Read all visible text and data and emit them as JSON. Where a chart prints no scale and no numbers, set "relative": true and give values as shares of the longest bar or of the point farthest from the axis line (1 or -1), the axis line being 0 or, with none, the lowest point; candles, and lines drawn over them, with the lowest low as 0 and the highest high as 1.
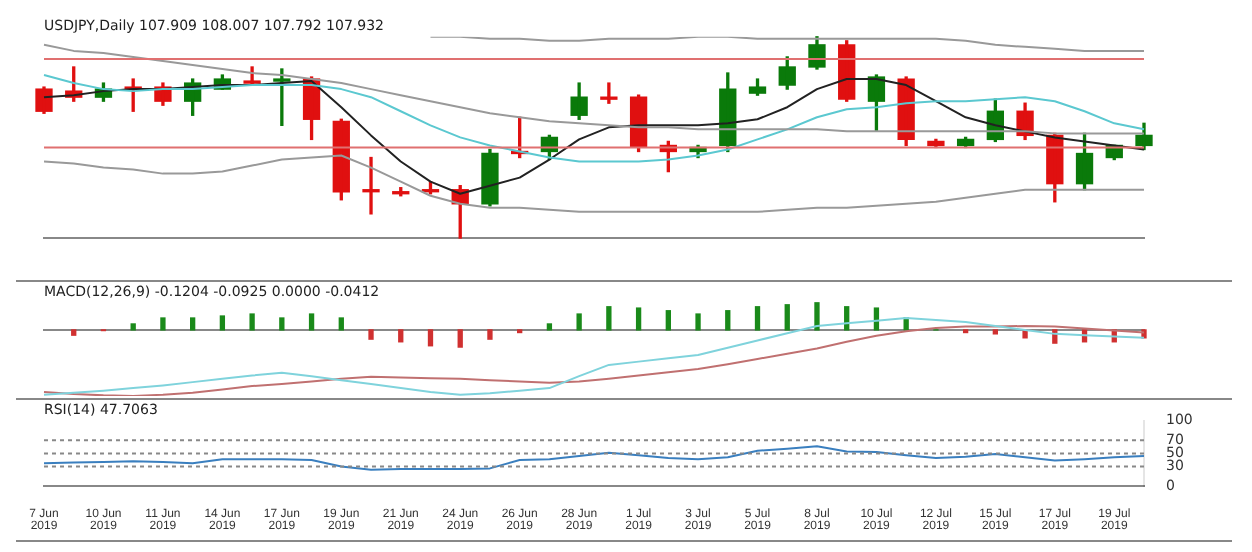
{
  "chart_data": [
    {
      "type": "candlestick",
      "title": "USDJPY,Daily 107.909 108.007 107.792 107.932",
      "relative": true,
      "grid": false,
      "legend": false,
      "marker": "none",
      "categories": [
        null,
        null,
        null,
        null,
        null,
        null,
        null,
        null,
        null,
        null,
        null,
        null,
        null,
        null,
        null,
        null,
        null,
        null,
        null,
        null,
        null,
        null,
        null,
        null,
        null,
        null,
        null,
        null,
        null,
        null,
        null,
        null,
        null,
        null,
        null,
        null,
        null,
        null
      ],
      "ohlc": [
        [
          0.74,
          0.75,
          0.62,
          0.63
        ],
        [
          0.73,
          0.85,
          0.68,
          0.7
        ],
        [
          0.7,
          0.77,
          0.68,
          0.74
        ],
        [
          0.75,
          0.79,
          0.63,
          0.74
        ],
        [
          0.75,
          0.77,
          0.66,
          0.68
        ],
        [
          0.68,
          0.79,
          0.61,
          0.77
        ],
        [
          0.74,
          0.81,
          0.74,
          0.79
        ],
        [
          0.78,
          0.85,
          0.76,
          0.77
        ],
        [
          0.78,
          0.84,
          0.56,
          0.79
        ],
        [
          0.79,
          0.8,
          0.49,
          0.59
        ],
        [
          0.58,
          0.59,
          0.19,
          0.23
        ],
        [
          0.24,
          0.4,
          0.12,
          0.23
        ],
        [
          0.23,
          0.25,
          0.21,
          0.22
        ],
        [
          0.24,
          0.28,
          0.22,
          0.23
        ],
        [
          0.24,
          0.26,
          0,
          0.17
        ],
        [
          0.17,
          0.44,
          0.16,
          0.42
        ],
        [
          0.43,
          0.6,
          0.4,
          0.42
        ],
        [
          0.43,
          0.51,
          0.39,
          0.5
        ],
        [
          0.61,
          0.77,
          0.59,
          0.7
        ],
        [
          0.7,
          0.77,
          0.67,
          0.69
        ],
        [
          0.7,
          0.71,
          0.43,
          0.45
        ],
        [
          0.46,
          0.48,
          0.33,
          0.43
        ],
        [
          0.43,
          0.46,
          0.4,
          0.45
        ],
        [
          0.46,
          0.82,
          0.43,
          0.74
        ],
        [
          0.72,
          0.79,
          0.71,
          0.75
        ],
        [
          0.76,
          0.9,
          0.74,
          0.85
        ],
        [
          0.85,
          1,
          0.84,
          0.96
        ],
        [
          0.96,
          0.98,
          0.68,
          0.69
        ],
        [
          0.68,
          0.81,
          0.53,
          0.8
        ],
        [
          0.79,
          0.8,
          0.46,
          0.49
        ],
        [
          0.48,
          0.49,
          0.45,
          0.46
        ],
        [
          0.46,
          0.5,
          0.45,
          0.49
        ],
        [
          0.49,
          0.69,
          0.48,
          0.63
        ],
        [
          0.63,
          0.67,
          0.49,
          0.51
        ],
        [
          0.51,
          0.52,
          0.18,
          0.27
        ],
        [
          0.27,
          0.52,
          0.24,
          0.42
        ],
        [
          0.4,
          0.46,
          0.39,
          0.46
        ],
        [
          0.46,
          0.57,
          0.44,
          0.51
        ]
      ],
      "colors": [
        "#e01010",
        "#e01010",
        "#0a7a0a",
        "#e01010",
        "#e01010",
        "#0a7a0a",
        "#0a7a0a",
        "#e01010",
        "#0a7a0a",
        "#e01010",
        "#e01010",
        "#e01010",
        "#e01010",
        "#e01010",
        "#e01010",
        "#0a7a0a",
        "#e01010",
        "#0a7a0a",
        "#0a7a0a",
        "#e01010",
        "#e01010",
        "#e01010",
        "#0a7a0a",
        "#0a7a0a",
        "#0a7a0a",
        "#0a7a0a",
        "#0a7a0a",
        "#e01010",
        "#0a7a0a",
        "#e01010",
        "#e01010",
        "#0a7a0a",
        "#0a7a0a",
        "#e01010",
        "#e01010",
        "#0a7a0a",
        "#0a7a0a",
        "#0a7a0a"
      ],
      "series": [
        {
          "type": "line",
          "color": "#999999",
          "values": [
            null,
            null,
            null,
            null,
            null,
            null,
            null,
            null,
            null,
            null,
            null,
            null,
            null,
            1,
            1,
            0.99,
            0.99,
            0.98,
            0.98,
            0.99,
            0.99,
            0.99,
            1,
            1,
            0.99,
            0.99,
            0.99,
            0.99,
            0.99,
            0.99,
            0.99,
            0.98,
            0.96,
            0.95,
            0.94,
            0.93,
            0.93,
            0.93
          ]
        },
        {
          "type": "line",
          "color": "#999999",
          "values": [
            0.96,
            0.93,
            0.92,
            0.9,
            0.88,
            0.86,
            0.84,
            0.82,
            0.81,
            0.79,
            0.77,
            0.74,
            0.71,
            0.68,
            0.65,
            0.62,
            0.6,
            0.58,
            0.57,
            0.56,
            0.55,
            0.55,
            0.54,
            0.54,
            0.54,
            0.54,
            0.54,
            0.53,
            0.53,
            0.53,
            0.53,
            0.53,
            0.53,
            0.53,
            0.52,
            0.52,
            0.52,
            0.52
          ]
        },
        {
          "type": "line",
          "color": "#999999",
          "values": [
            0.38,
            0.37,
            0.35,
            0.34,
            0.32,
            0.32,
            0.33,
            0.36,
            0.39,
            0.4,
            0.41,
            0.35,
            0.28,
            0.21,
            0.17,
            0.15,
            0.15,
            0.14,
            0.13,
            0.13,
            0.13,
            0.13,
            0.13,
            0.13,
            0.13,
            0.14,
            0.15,
            0.15,
            0.16,
            0.17,
            0.18,
            0.2,
            0.22,
            0.24,
            0.24,
            0.24,
            0.24,
            0.24
          ]
        },
        {
          "type": "line",
          "color": "#5bc8d0",
          "values": [
            0.81,
            0.77,
            0.74,
            0.73,
            0.74,
            0.74,
            0.75,
            0.76,
            0.76,
            0.76,
            0.74,
            0.7,
            0.63,
            0.56,
            0.5,
            0.46,
            0.43,
            0.4,
            0.38,
            0.38,
            0.38,
            0.39,
            0.41,
            0.44,
            0.49,
            0.54,
            0.6,
            0.64,
            0.65,
            0.67,
            0.68,
            0.68,
            0.69,
            0.7,
            0.68,
            0.63,
            0.57,
            0.54
          ]
        },
        {
          "type": "line",
          "color": "#222222",
          "values": [
            0.7,
            0.71,
            0.73,
            0.74,
            0.74,
            0.75,
            0.76,
            0.76,
            0.77,
            0.78,
            0.65,
            0.51,
            0.38,
            0.28,
            0.22,
            0.26,
            0.3,
            0.39,
            0.49,
            0.55,
            0.56,
            0.56,
            0.56,
            0.57,
            0.59,
            0.65,
            0.74,
            0.79,
            0.79,
            0.76,
            0.68,
            0.6,
            0.56,
            0.53,
            0.5,
            0.48,
            0.46,
            0.44
          ]
        }
      ],
      "ref_lines": [
        {
          "axis": "y",
          "value": 0.89,
          "color": "#e07070"
        },
        {
          "axis": "y",
          "value": 0.45,
          "color": "#e07070"
        }
      ]
    },
    {
      "type": "bar",
      "title": "MACD(12,26,9) -0.1204 -0.0925 0.0000 -0.0412",
      "relative": true,
      "grid": false,
      "legend": false,
      "marker": "none",
      "categories": [
        null,
        null,
        null,
        null,
        null,
        null,
        null,
        null,
        null,
        null,
        null,
        null,
        null,
        null,
        null,
        null,
        null,
        null,
        null,
        null,
        null,
        null,
        null,
        null,
        null,
        null,
        null,
        null,
        null,
        null,
        null,
        null,
        null,
        null,
        null,
        null,
        null,
        null
      ],
      "series": [
        {
          "type": "bar",
          "values": [
            null,
            -0.08,
            -0.01,
            0.09,
            0.18,
            0.18,
            0.21,
            0.24,
            0.18,
            0.24,
            0.18,
            -0.14,
            -0.18,
            -0.24,
            -0.26,
            -0.14,
            -0.04,
            0.09,
            0.24,
            0.35,
            0.33,
            0.29,
            0.24,
            0.29,
            0.35,
            0.38,
            0.41,
            0.35,
            0.33,
            0.18,
            0,
            -0.04,
            -0.06,
            -0.12,
            -0.2,
            -0.18,
            -0.18,
            -0.12
          ],
          "colors": [
            "#1a8a1a",
            "#d03030",
            "#d03030",
            "#1a8a1a",
            "#1a8a1a",
            "#1a8a1a",
            "#1a8a1a",
            "#1a8a1a",
            "#1a8a1a",
            "#1a8a1a",
            "#1a8a1a",
            "#d03030",
            "#d03030",
            "#d03030",
            "#d03030",
            "#d03030",
            "#d03030",
            "#1a8a1a",
            "#1a8a1a",
            "#1a8a1a",
            "#1a8a1a",
            "#1a8a1a",
            "#1a8a1a",
            "#1a8a1a",
            "#1a8a1a",
            "#1a8a1a",
            "#1a8a1a",
            "#1a8a1a",
            "#1a8a1a",
            "#1a8a1a",
            "#1a8a1a",
            "#d03030",
            "#d03030",
            "#d03030",
            "#d03030",
            "#d03030",
            "#d03030",
            "#d03030"
          ]
        },
        {
          "type": "line",
          "color": "#7fd3dc",
          "values": [
            -0.98,
            -0.95,
            -0.92,
            -0.88,
            -0.84,
            -0.79,
            -0.74,
            -0.69,
            -0.65,
            -0.7,
            -0.76,
            -0.82,
            -0.88,
            -0.94,
            -0.98,
            -0.96,
            -0.92,
            -0.88,
            -0.7,
            -0.53,
            -0.48,
            -0.43,
            -0.38,
            -0.27,
            -0.16,
            -0.05,
            0.06,
            0.1,
            0.14,
            0.18,
            0.15,
            0.12,
            0.06,
            0,
            -0.06,
            -0.08,
            -0.1,
            -0.12
          ]
        },
        {
          "type": "line",
          "color": "#c07070",
          "values": [
            -0.94,
            -0.97,
            -0.99,
            -1,
            -0.98,
            -0.95,
            -0.9,
            -0.85,
            -0.82,
            -0.78,
            -0.74,
            -0.71,
            -0.72,
            -0.73,
            -0.74,
            -0.76,
            -0.78,
            -0.8,
            -0.78,
            -0.74,
            -0.69,
            -0.64,
            -0.59,
            -0.52,
            -0.44,
            -0.36,
            -0.28,
            -0.18,
            -0.09,
            -0.02,
            0.03,
            0.05,
            0.05,
            0.06,
            0.05,
            0.02,
            -0.01,
            -0.04
          ]
        }
      ]
    },
    {
      "type": "line",
      "title": "RSI(14) 47.7063",
      "grid": false,
      "legend": false,
      "marker": "none",
      "categories": [
        "7 Jun 2019",
        null,
        "10 Jun 2019",
        null,
        "11 Jun 2019",
        null,
        "14 Jun 2019",
        null,
        "17 Jun 2019",
        null,
        "19 Jun 2019",
        null,
        "21 Jun 2019",
        null,
        "24 Jun 2019",
        null,
        "26 Jun 2019",
        null,
        "28 Jun 2019",
        null,
        "1 Jul 2019",
        null,
        "3 Jul 2019",
        null,
        "5 Jul 2019",
        null,
        "8 Jul 2019",
        null,
        "10 Jul 2019",
        null,
        "12 Jul 2019",
        null,
        "15 Jul 2019",
        null,
        "17 Jul 2019",
        null,
        "19 Jul 2019",
        null
      ],
      "ylim": [
        0,
        100
      ],
      "yticks": [
        0,
        30,
        50,
        70,
        100
      ],
      "series": [
        {
          "color": "#3a7fbf",
          "values": [
            35,
            36,
            37,
            38,
            37,
            35,
            41,
            41,
            41,
            40,
            30,
            25,
            26,
            26,
            26,
            27,
            40,
            41,
            46,
            51,
            47,
            43,
            41,
            44,
            54,
            57,
            61,
            53,
            52,
            47,
            43,
            45,
            49,
            44,
            39,
            41,
            44,
            46
          ]
        }
      ],
      "ref_lines": [
        {
          "axis": "y",
          "value": 70,
          "color": "#888888",
          "line_style": "dotted"
        },
        {
          "axis": "y",
          "value": 50,
          "color": "#888888",
          "line_style": "dotted"
        },
        {
          "axis": "y",
          "value": 30,
          "color": "#888888",
          "line_style": "dotted"
        }
      ]
    }
  ]
}
